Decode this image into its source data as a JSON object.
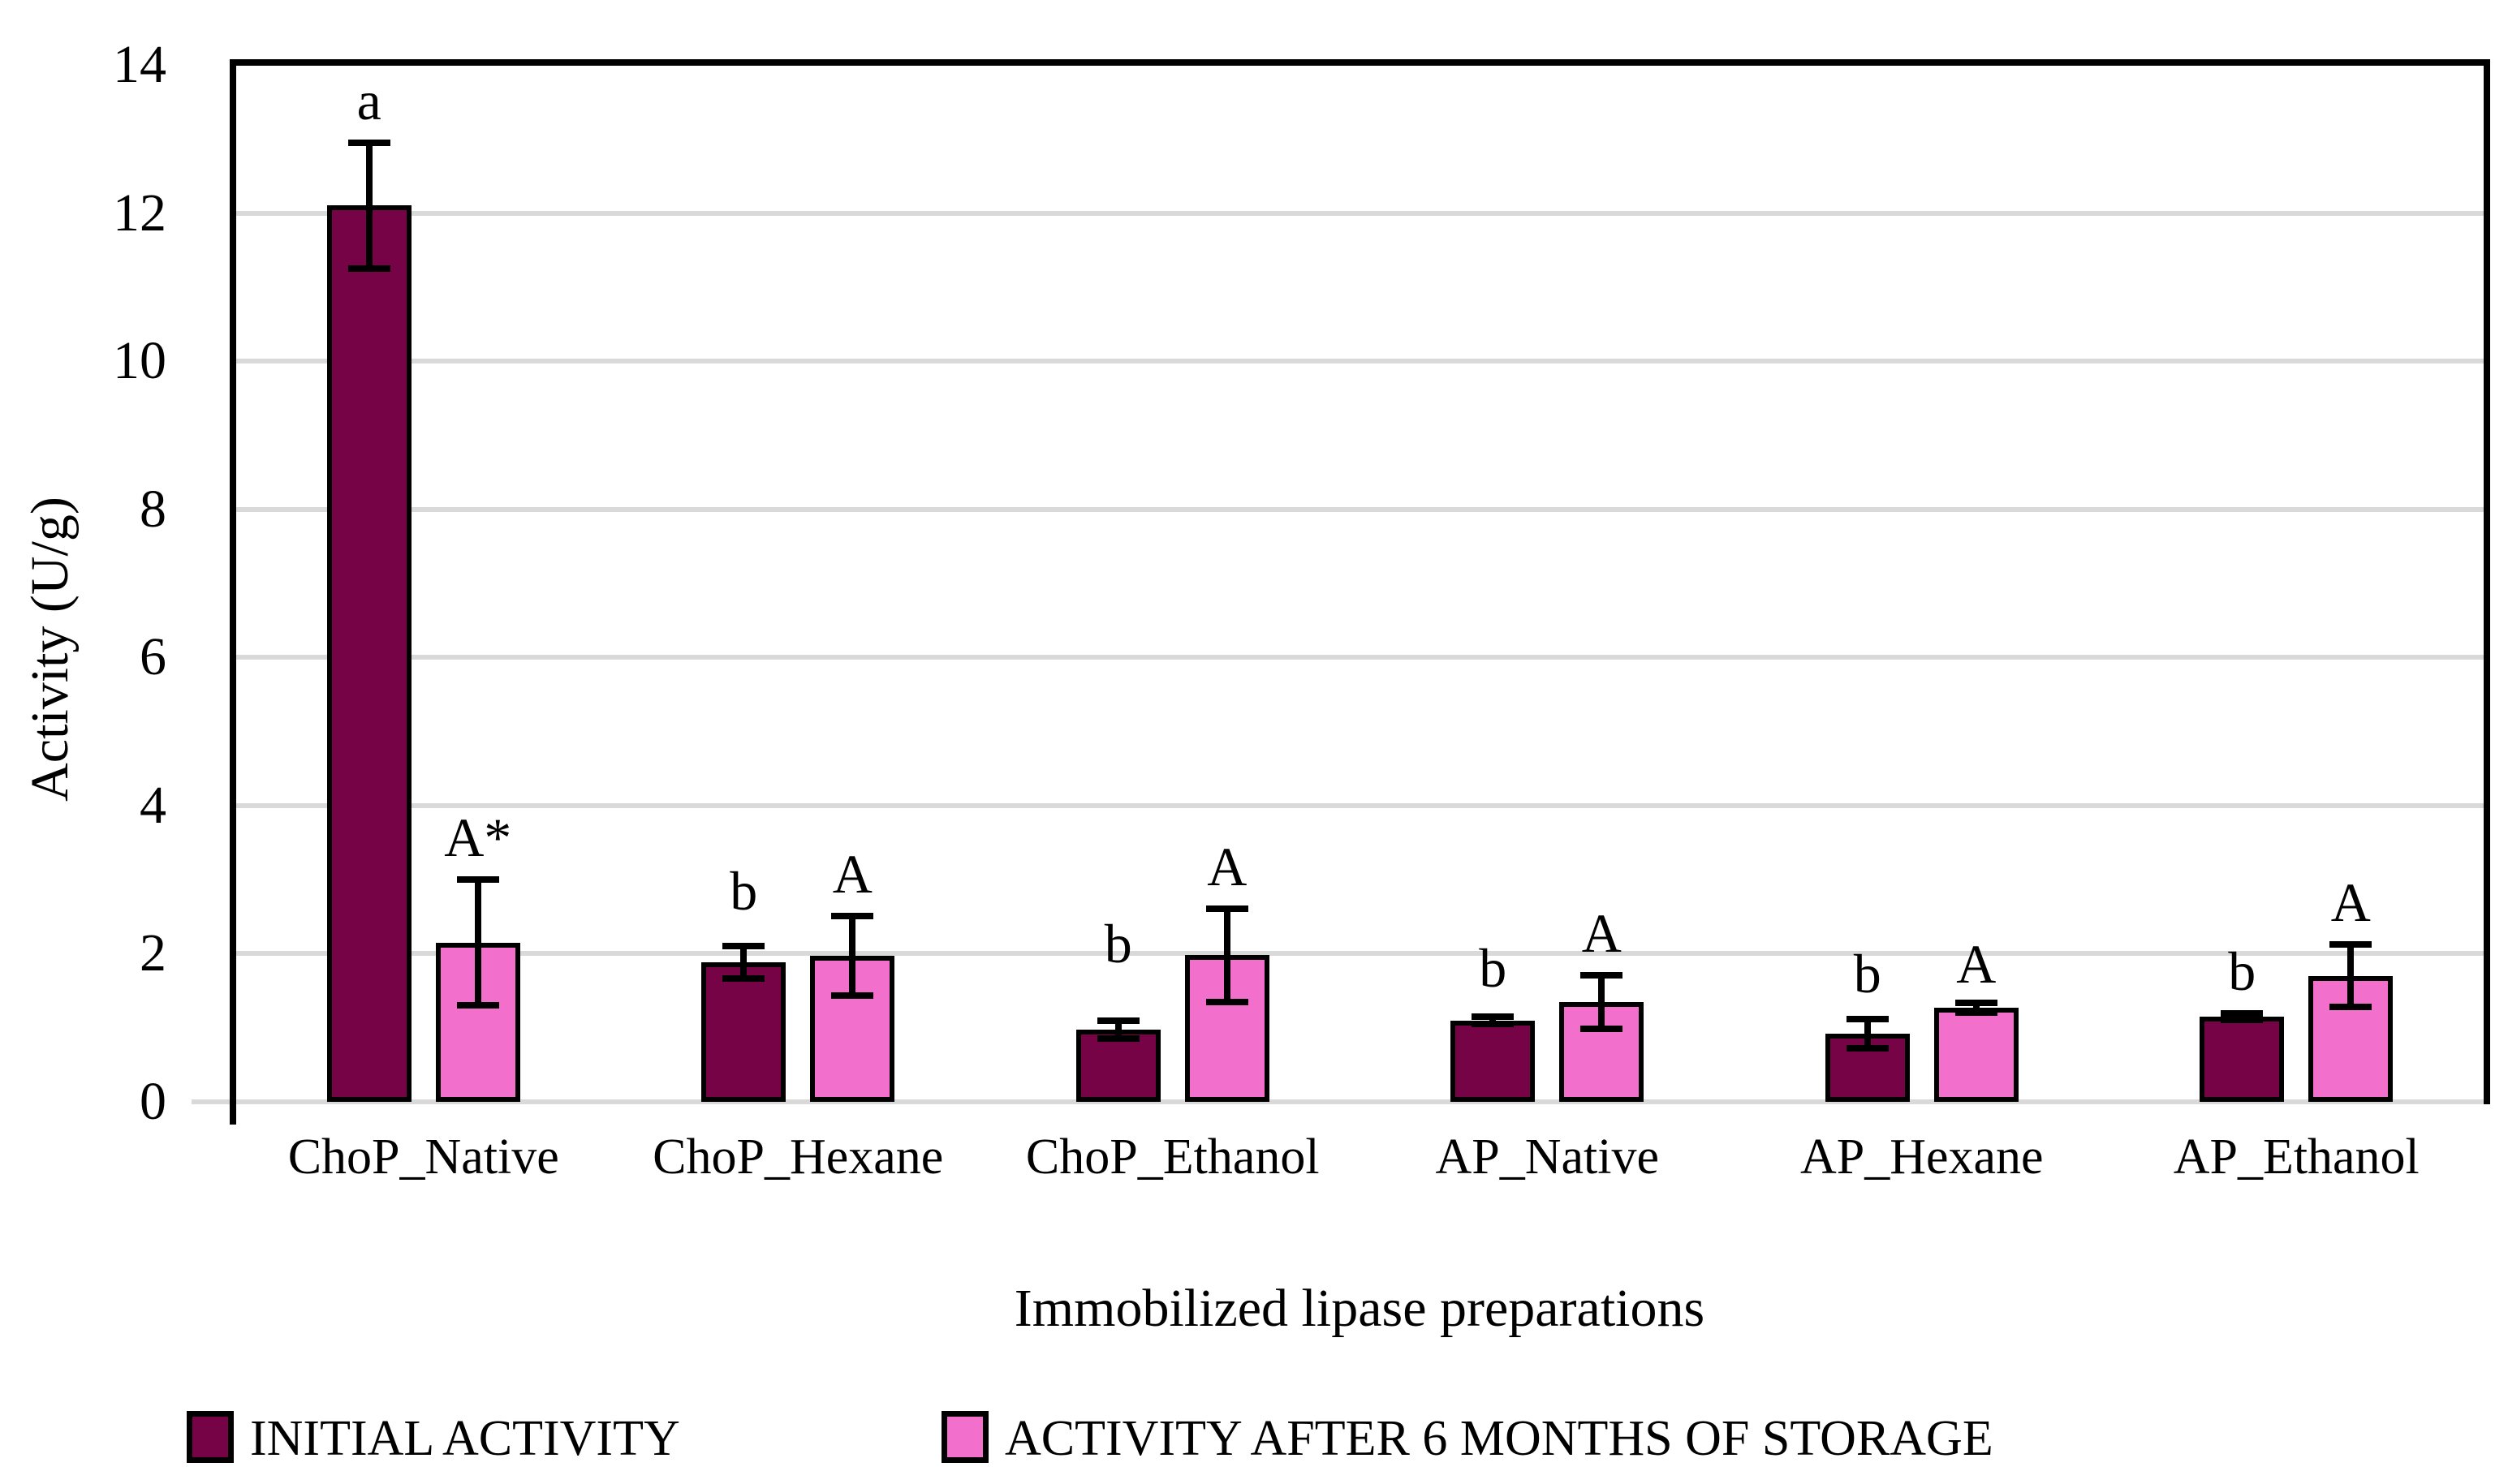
{
  "chart_data": {
    "type": "bar",
    "title": "",
    "xlabel": "Immobilized lipase preparations",
    "ylabel": "Activity (U/g)",
    "ylim": [
      0,
      14
    ],
    "yticks": [
      0,
      2,
      4,
      6,
      8,
      10,
      12,
      14
    ],
    "grid": "horizontal",
    "gridline_color": "#D9D9D9",
    "bar_outline_color": "#000000",
    "legend_position": "bottom",
    "categories": [
      "ChoP_Native",
      "ChoP_Hexane",
      "ChoP_Ethanol",
      "AP_Native",
      "AP_Hexane",
      "AP_Ethanol"
    ],
    "series": [
      {
        "name": "INITIAL ACTIVITY",
        "color": "#750345",
        "values": [
          12.1,
          1.88,
          0.97,
          1.1,
          0.92,
          1.15
        ],
        "errors": [
          0.85,
          0.22,
          0.12,
          0.05,
          0.2,
          0.04
        ],
        "letters": [
          "a",
          "b",
          "b",
          "b",
          "b",
          "b"
        ]
      },
      {
        "name": "ACTIVITY AFTER 6 MONTHS OF STORAGE",
        "color": "#F26FCB",
        "values": [
          2.15,
          1.97,
          1.98,
          1.35,
          1.27,
          1.7
        ],
        "errors": [
          0.85,
          0.54,
          0.63,
          0.36,
          0.07,
          0.42
        ],
        "letters": [
          "A*",
          "A",
          "A",
          "A",
          "A",
          "A"
        ]
      }
    ]
  }
}
